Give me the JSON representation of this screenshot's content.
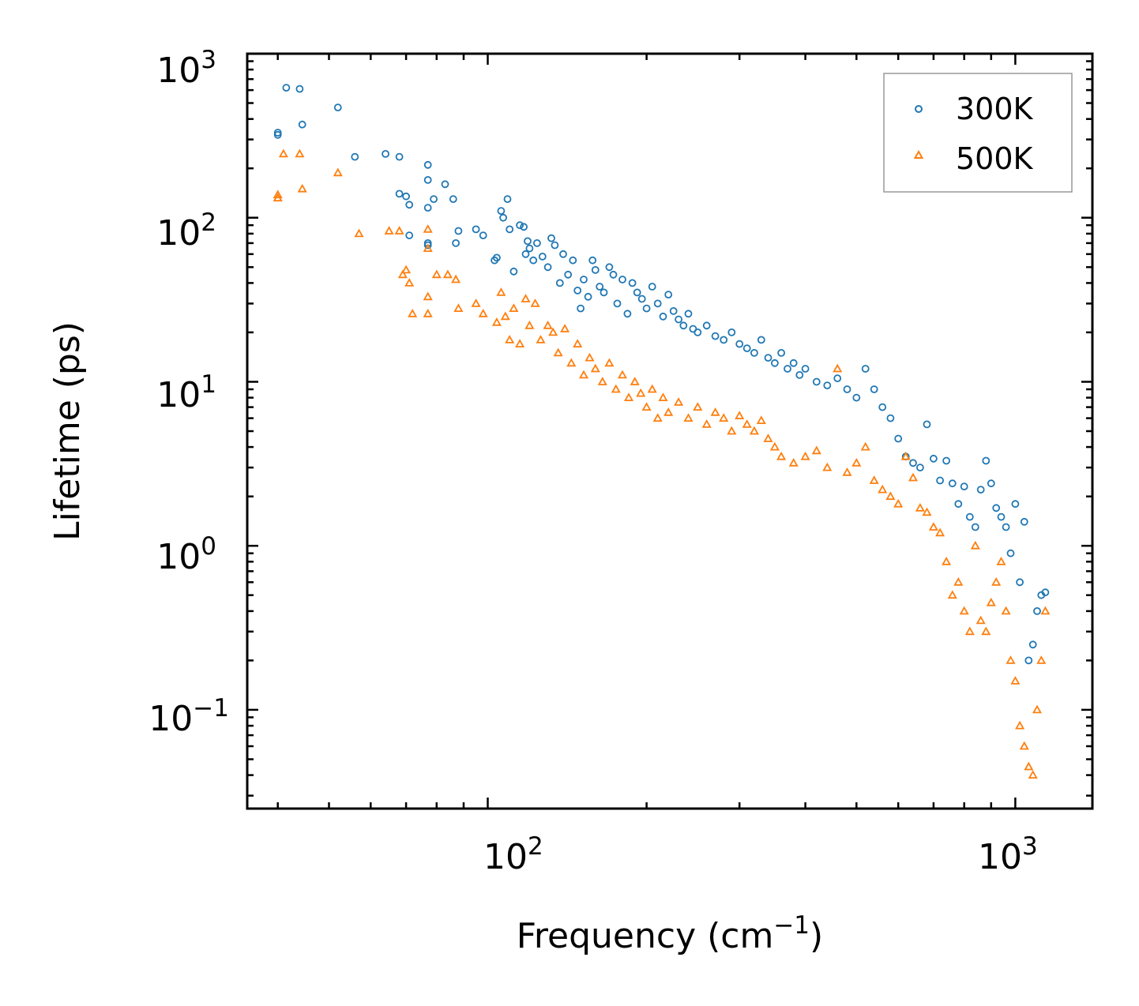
{
  "chart_data": {
    "type": "scatter",
    "title": "",
    "xlabel": "Frequency (cm",
    "xlabel_sup": "−1",
    "xlabel_tail": ")",
    "ylabel": "Lifetime (ps)",
    "xscale": "log",
    "yscale": "log",
    "xlim": [
      35,
      1400
    ],
    "ylim": [
      0.025,
      1000
    ],
    "x_ticks": [
      {
        "base": "10",
        "exp": "2",
        "value": 100
      },
      {
        "base": "10",
        "exp": "3",
        "value": 1000
      }
    ],
    "y_ticks": [
      {
        "base": "10",
        "exp": "3",
        "value": 1000
      },
      {
        "base": "10",
        "exp": "2",
        "value": 100
      },
      {
        "base": "10",
        "exp": "1",
        "value": 10
      },
      {
        "base": "10",
        "exp": "0",
        "value": 1
      },
      {
        "base": "10",
        "exp": "−1",
        "value": 0.1
      }
    ],
    "legend_position": "top-right",
    "series": [
      {
        "name": "300K",
        "marker": "circle",
        "color": "#1f77b4",
        "points": [
          [
            40,
            330
          ],
          [
            40,
            320
          ],
          [
            41.5,
            620
          ],
          [
            44,
            610
          ],
          [
            44.5,
            370
          ],
          [
            52,
            470
          ],
          [
            56,
            235
          ],
          [
            64,
            245
          ],
          [
            68,
            235
          ],
          [
            68,
            140
          ],
          [
            70,
            135
          ],
          [
            71,
            120
          ],
          [
            71,
            78
          ],
          [
            77,
            210
          ],
          [
            77,
            170
          ],
          [
            77,
            115
          ],
          [
            77,
            70
          ],
          [
            77,
            68
          ],
          [
            79,
            130
          ],
          [
            83,
            160
          ],
          [
            86,
            130
          ],
          [
            87,
            70
          ],
          [
            88,
            83
          ],
          [
            95,
            85
          ],
          [
            98,
            78
          ],
          [
            103,
            55
          ],
          [
            104,
            57
          ],
          [
            106,
            110
          ],
          [
            107,
            100
          ],
          [
            109,
            130
          ],
          [
            110,
            85
          ],
          [
            112,
            47
          ],
          [
            115,
            90
          ],
          [
            117,
            88
          ],
          [
            118,
            60
          ],
          [
            119,
            72
          ],
          [
            120,
            65
          ],
          [
            122,
            55
          ],
          [
            124,
            70
          ],
          [
            127,
            58
          ],
          [
            130,
            50
          ],
          [
            132,
            75
          ],
          [
            134,
            68
          ],
          [
            137,
            40
          ],
          [
            139,
            60
          ],
          [
            142,
            45
          ],
          [
            145,
            55
          ],
          [
            148,
            36
          ],
          [
            150,
            28
          ],
          [
            152,
            42
          ],
          [
            155,
            33
          ],
          [
            158,
            55
          ],
          [
            160,
            48
          ],
          [
            163,
            38
          ],
          [
            166,
            35
          ],
          [
            170,
            50
          ],
          [
            173,
            45
          ],
          [
            176,
            30
          ],
          [
            180,
            42
          ],
          [
            184,
            26
          ],
          [
            188,
            40
          ],
          [
            192,
            35
          ],
          [
            196,
            32
          ],
          [
            200,
            28
          ],
          [
            205,
            38
          ],
          [
            210,
            30
          ],
          [
            215,
            25
          ],
          [
            220,
            34
          ],
          [
            225,
            27
          ],
          [
            230,
            24
          ],
          [
            235,
            22
          ],
          [
            240,
            26
          ],
          [
            245,
            21
          ],
          [
            250,
            20
          ],
          [
            260,
            22
          ],
          [
            270,
            19
          ],
          [
            280,
            18
          ],
          [
            290,
            20
          ],
          [
            300,
            17
          ],
          [
            310,
            16
          ],
          [
            320,
            15
          ],
          [
            330,
            18
          ],
          [
            340,
            14
          ],
          [
            350,
            13
          ],
          [
            360,
            15
          ],
          [
            370,
            12
          ],
          [
            380,
            13
          ],
          [
            390,
            11
          ],
          [
            400,
            12
          ],
          [
            420,
            10
          ],
          [
            440,
            9.5
          ],
          [
            460,
            10.5
          ],
          [
            480,
            9
          ],
          [
            500,
            8
          ],
          [
            520,
            12
          ],
          [
            540,
            9
          ],
          [
            560,
            7
          ],
          [
            580,
            6
          ],
          [
            600,
            4.5
          ],
          [
            620,
            3.5
          ],
          [
            640,
            3.2
          ],
          [
            660,
            3
          ],
          [
            680,
            5.5
          ],
          [
            700,
            3.4
          ],
          [
            720,
            2.5
          ],
          [
            740,
            3.3
          ],
          [
            760,
            2.4
          ],
          [
            780,
            1.8
          ],
          [
            800,
            2.3
          ],
          [
            820,
            1.5
          ],
          [
            840,
            1.3
          ],
          [
            860,
            2.2
          ],
          [
            880,
            3.3
          ],
          [
            900,
            2.4
          ],
          [
            920,
            1.7
          ],
          [
            940,
            1.5
          ],
          [
            960,
            1.3
          ],
          [
            980,
            0.9
          ],
          [
            1000,
            1.8
          ],
          [
            1020,
            0.6
          ],
          [
            1040,
            1.4
          ],
          [
            1060,
            0.2
          ],
          [
            1080,
            0.25
          ],
          [
            1100,
            0.4
          ],
          [
            1120,
            0.5
          ],
          [
            1140,
            0.52
          ]
        ]
      },
      {
        "name": "500K",
        "marker": "triangle",
        "color": "#ff7f0e",
        "points": [
          [
            40,
            138
          ],
          [
            40,
            132
          ],
          [
            41,
            245
          ],
          [
            44,
            245
          ],
          [
            44.5,
            150
          ],
          [
            52,
            188
          ],
          [
            57,
            80
          ],
          [
            65,
            83
          ],
          [
            68,
            83
          ],
          [
            69,
            45
          ],
          [
            70,
            48
          ],
          [
            71,
            40
          ],
          [
            72,
            26
          ],
          [
            77,
            85
          ],
          [
            77,
            65
          ],
          [
            77,
            33
          ],
          [
            77,
            26
          ],
          [
            80,
            45
          ],
          [
            84,
            45
          ],
          [
            87,
            42
          ],
          [
            88,
            28
          ],
          [
            95,
            30
          ],
          [
            98,
            26
          ],
          [
            104,
            23
          ],
          [
            106,
            35
          ],
          [
            108,
            25
          ],
          [
            110,
            18
          ],
          [
            112,
            28
          ],
          [
            115,
            17
          ],
          [
            118,
            32
          ],
          [
            120,
            22
          ],
          [
            123,
            30
          ],
          [
            126,
            18
          ],
          [
            130,
            22
          ],
          [
            133,
            20
          ],
          [
            136,
            15
          ],
          [
            140,
            21
          ],
          [
            144,
            13
          ],
          [
            148,
            17
          ],
          [
            152,
            11
          ],
          [
            156,
            14
          ],
          [
            160,
            12
          ],
          [
            165,
            10
          ],
          [
            170,
            13
          ],
          [
            175,
            9
          ],
          [
            180,
            11
          ],
          [
            185,
            8
          ],
          [
            190,
            10
          ],
          [
            195,
            8.5
          ],
          [
            200,
            7
          ],
          [
            205,
            9
          ],
          [
            210,
            6
          ],
          [
            215,
            8
          ],
          [
            220,
            6.5
          ],
          [
            230,
            7.5
          ],
          [
            240,
            6
          ],
          [
            250,
            7
          ],
          [
            260,
            5.5
          ],
          [
            270,
            6.5
          ],
          [
            280,
            6
          ],
          [
            290,
            5
          ],
          [
            300,
            6.2
          ],
          [
            310,
            5.5
          ],
          [
            320,
            5
          ],
          [
            330,
            5.8
          ],
          [
            340,
            4.5
          ],
          [
            350,
            4
          ],
          [
            360,
            3.5
          ],
          [
            380,
            3.2
          ],
          [
            400,
            3.5
          ],
          [
            420,
            3.8
          ],
          [
            440,
            3
          ],
          [
            460,
            12
          ],
          [
            480,
            2.8
          ],
          [
            500,
            3.2
          ],
          [
            520,
            4
          ],
          [
            540,
            2.5
          ],
          [
            560,
            2.2
          ],
          [
            580,
            2
          ],
          [
            600,
            1.8
          ],
          [
            620,
            3.5
          ],
          [
            640,
            2.6
          ],
          [
            660,
            1.7
          ],
          [
            680,
            1.6
          ],
          [
            700,
            1.3
          ],
          [
            720,
            1.2
          ],
          [
            740,
            0.8
          ],
          [
            760,
            0.5
          ],
          [
            780,
            0.6
          ],
          [
            800,
            0.4
          ],
          [
            820,
            0.3
          ],
          [
            840,
            1.0
          ],
          [
            860,
            0.35
          ],
          [
            880,
            0.3
          ],
          [
            900,
            0.45
          ],
          [
            920,
            0.6
          ],
          [
            940,
            0.8
          ],
          [
            960,
            0.4
          ],
          [
            980,
            0.2
          ],
          [
            1000,
            0.15
          ],
          [
            1020,
            0.08
          ],
          [
            1040,
            0.06
          ],
          [
            1060,
            0.045
          ],
          [
            1080,
            0.04
          ],
          [
            1100,
            0.1
          ],
          [
            1120,
            0.2
          ],
          [
            1140,
            0.4
          ]
        ]
      }
    ]
  }
}
